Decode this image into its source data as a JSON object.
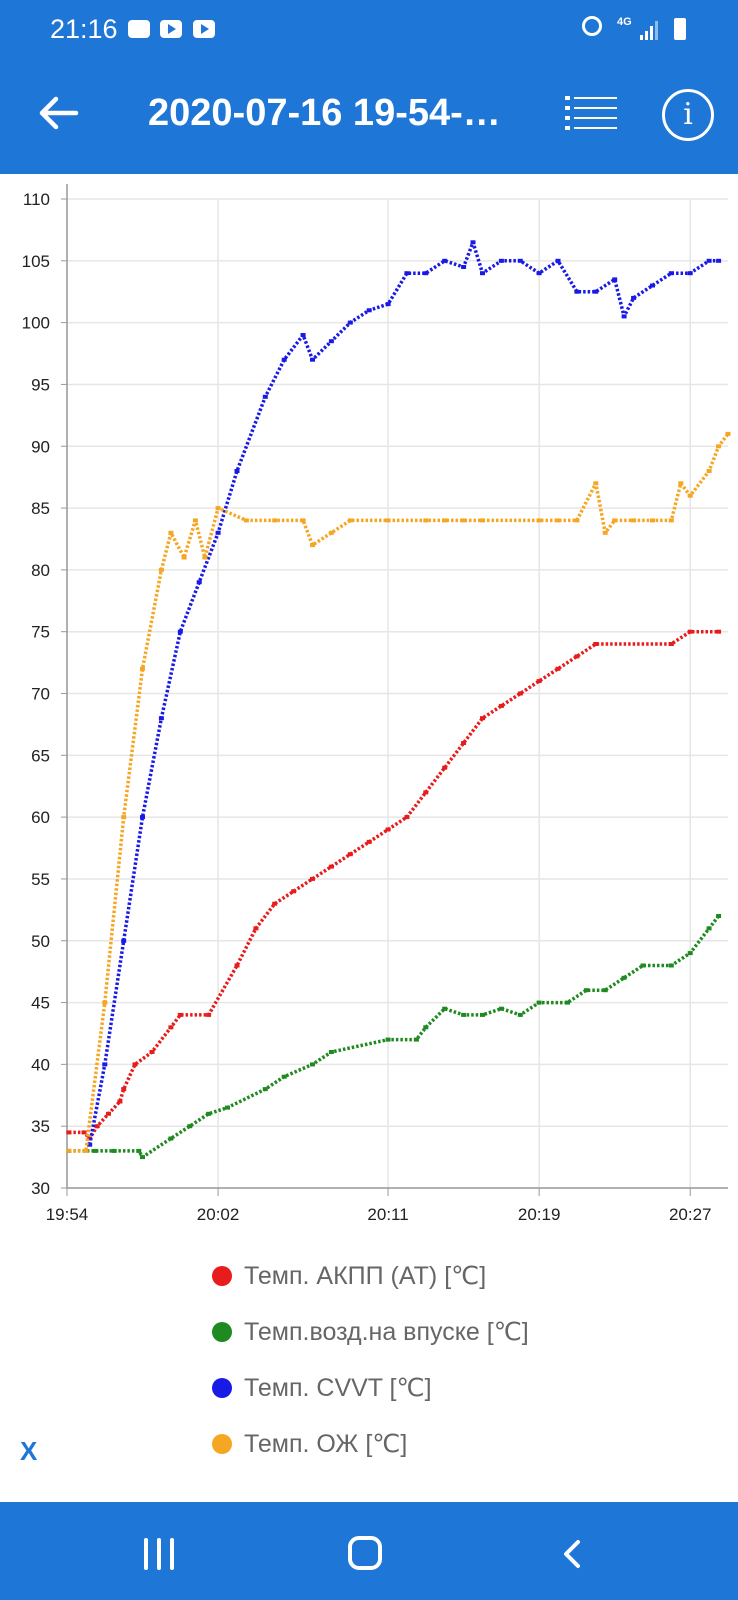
{
  "status_bar": {
    "time": "21:16",
    "icons": [
      "image-icon",
      "youtube-icon",
      "youtube-icon",
      "alarm-icon",
      "4g-icon",
      "signal-icon",
      "battery-icon"
    ],
    "network": "4G"
  },
  "app_bar": {
    "title": "2020-07-16 19-54-…",
    "back_icon": "arrow-left-icon",
    "list_icon": "list-icon",
    "info_icon": "info-icon"
  },
  "colors": {
    "primary": "#1e76d6",
    "series_red": "#e81c1c",
    "series_green": "#1f8a1f",
    "series_blue": "#1a1ae6",
    "series_orange": "#f5a623",
    "grid": "#e6e6e6"
  },
  "chart_data": {
    "type": "line",
    "line_style": "dotted",
    "x_unit": "minutes",
    "x_ticks": [
      {
        "x": 0,
        "label": "19:54"
      },
      {
        "x": 8,
        "label": "20:02"
      },
      {
        "x": 17,
        "label": "20:11"
      },
      {
        "x": 25,
        "label": "20:19"
      },
      {
        "x": 33,
        "label": "20:27"
      }
    ],
    "xlim": [
      0,
      35
    ],
    "ylim": [
      30,
      110
    ],
    "y_ticks": [
      30,
      35,
      40,
      45,
      50,
      55,
      60,
      65,
      70,
      75,
      80,
      85,
      90,
      95,
      100,
      105,
      110
    ],
    "grid": true,
    "legend_position": "bottom",
    "series": [
      {
        "name": "Темп. АКПП (AT) [℃]",
        "color": "#e81c1c",
        "points": [
          [
            0.1,
            34.5
          ],
          [
            0.9,
            34.5
          ],
          [
            1.2,
            34
          ],
          [
            1.6,
            35
          ],
          [
            2.2,
            36
          ],
          [
            2.8,
            37
          ],
          [
            3.0,
            38
          ],
          [
            3.6,
            40
          ],
          [
            4.5,
            41
          ],
          [
            5.5,
            43
          ],
          [
            6.0,
            44
          ],
          [
            7.5,
            44
          ],
          [
            9.0,
            48
          ],
          [
            10.0,
            51
          ],
          [
            11.0,
            53
          ],
          [
            12.0,
            54
          ],
          [
            13.0,
            55
          ],
          [
            14.0,
            56
          ],
          [
            15.0,
            57
          ],
          [
            16.0,
            58
          ],
          [
            17.0,
            59
          ],
          [
            18.0,
            60
          ],
          [
            19.0,
            62
          ],
          [
            20.0,
            64
          ],
          [
            21.0,
            66
          ],
          [
            22.0,
            68
          ],
          [
            23.0,
            69
          ],
          [
            24.0,
            70
          ],
          [
            25.0,
            71
          ],
          [
            26.0,
            72
          ],
          [
            27.0,
            73
          ],
          [
            28.0,
            74
          ],
          [
            32.0,
            74
          ],
          [
            33.0,
            75
          ],
          [
            34.5,
            75
          ]
        ]
      },
      {
        "name": "Темп.возд.на впуске [℃]",
        "color": "#1f8a1f",
        "points": [
          [
            0.1,
            33
          ],
          [
            1.5,
            33
          ],
          [
            2.5,
            33
          ],
          [
            3.8,
            33
          ],
          [
            4,
            32.5
          ],
          [
            5.5,
            34
          ],
          [
            6.5,
            35
          ],
          [
            7.5,
            36
          ],
          [
            8.5,
            36.5
          ],
          [
            10.5,
            38
          ],
          [
            11.5,
            39
          ],
          [
            13,
            40
          ],
          [
            14,
            41
          ],
          [
            17,
            42
          ],
          [
            18.5,
            42
          ],
          [
            19,
            43
          ],
          [
            20,
            44.5
          ],
          [
            21,
            44
          ],
          [
            22,
            44
          ],
          [
            23,
            44.5
          ],
          [
            24,
            44
          ],
          [
            25,
            45
          ],
          [
            26.5,
            45
          ],
          [
            27.5,
            46
          ],
          [
            28.5,
            46
          ],
          [
            29.5,
            47
          ],
          [
            30.5,
            48
          ],
          [
            32,
            48
          ],
          [
            33,
            49
          ],
          [
            34,
            51
          ],
          [
            34.5,
            52
          ]
        ]
      },
      {
        "name": "Темп. CVVT [℃]",
        "color": "#1a1ae6",
        "points": [
          [
            1.2,
            33.5
          ],
          [
            2.0,
            40
          ],
          [
            3.0,
            50
          ],
          [
            4.0,
            60
          ],
          [
            5.0,
            68
          ],
          [
            6.0,
            75
          ],
          [
            7.0,
            79
          ],
          [
            8.0,
            83
          ],
          [
            9.0,
            88
          ],
          [
            10.5,
            94
          ],
          [
            11.5,
            97
          ],
          [
            12.5,
            99
          ],
          [
            13,
            97
          ],
          [
            14,
            98.5
          ],
          [
            15,
            100
          ],
          [
            16,
            101
          ],
          [
            17,
            101.5
          ],
          [
            18,
            104
          ],
          [
            19,
            104
          ],
          [
            20,
            105
          ],
          [
            21,
            104.5
          ],
          [
            21.5,
            106.5
          ],
          [
            22,
            104
          ],
          [
            23,
            105
          ],
          [
            24,
            105
          ],
          [
            25,
            104
          ],
          [
            26,
            105
          ],
          [
            27,
            102.5
          ],
          [
            28,
            102.5
          ],
          [
            29,
            103.5
          ],
          [
            29.5,
            100.5
          ],
          [
            30,
            102
          ],
          [
            31,
            103
          ],
          [
            32,
            104
          ],
          [
            33,
            104
          ],
          [
            34,
            105
          ],
          [
            34.5,
            105
          ]
        ]
      },
      {
        "name": "Темп. ОЖ [℃]",
        "color": "#f5a623",
        "points": [
          [
            0.1,
            33
          ],
          [
            1.0,
            33
          ],
          [
            2.0,
            45
          ],
          [
            3.0,
            60
          ],
          [
            4.0,
            72
          ],
          [
            5.0,
            80
          ],
          [
            5.5,
            83
          ],
          [
            6.2,
            81
          ],
          [
            6.8,
            84
          ],
          [
            7.3,
            81
          ],
          [
            8,
            85
          ],
          [
            9.5,
            84
          ],
          [
            11,
            84
          ],
          [
            12.5,
            84
          ],
          [
            13,
            82
          ],
          [
            14,
            83
          ],
          [
            15,
            84
          ],
          [
            17,
            84
          ],
          [
            19,
            84
          ],
          [
            20,
            84
          ],
          [
            21,
            84
          ],
          [
            22,
            84
          ],
          [
            25,
            84
          ],
          [
            26,
            84
          ],
          [
            27,
            84
          ],
          [
            28,
            87
          ],
          [
            28.5,
            83
          ],
          [
            29,
            84
          ],
          [
            30,
            84
          ],
          [
            31,
            84
          ],
          [
            32,
            84
          ],
          [
            32.5,
            87
          ],
          [
            33,
            86
          ],
          [
            34,
            88
          ],
          [
            34.5,
            90
          ],
          [
            35,
            91
          ]
        ]
      }
    ]
  },
  "close_label": "X",
  "nav_bar": {
    "recents_icon": "recents-icon",
    "home_icon": "home-icon",
    "back_icon": "nav-back-icon"
  }
}
